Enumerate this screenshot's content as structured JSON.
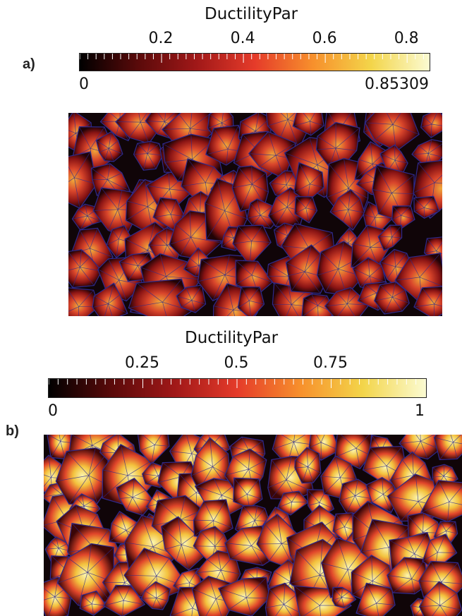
{
  "panels": [
    {
      "label": "a)",
      "colorbar": {
        "title": "DuctilityPar",
        "min_label": "0",
        "max_label": "0.85309",
        "range": [
          0,
          0.85309
        ],
        "major_ticks": [
          {
            "value": 0.2,
            "label": "0.2"
          },
          {
            "value": 0.4,
            "label": "0.4"
          },
          {
            "value": 0.6,
            "label": "0.6"
          },
          {
            "value": 0.8,
            "label": "0.8"
          }
        ],
        "minor_step": 0.02
      }
    },
    {
      "label": "b)",
      "colorbar": {
        "title": "DuctilityPar",
        "min_label": "0",
        "max_label": "1",
        "range": [
          0,
          1
        ],
        "major_ticks": [
          {
            "value": 0.25,
            "label": "0.25"
          },
          {
            "value": 0.5,
            "label": "0.5"
          },
          {
            "value": 0.75,
            "label": "0.75"
          }
        ],
        "minor_step": 0.025
      }
    }
  ],
  "colormap": [
    "#000000",
    "#5a0a0a",
    "#a01818",
    "#e53b2a",
    "#f7902c",
    "#f3d54a",
    "#fbfbd2"
  ],
  "mesh_edge_color": "#2e2a8c"
}
